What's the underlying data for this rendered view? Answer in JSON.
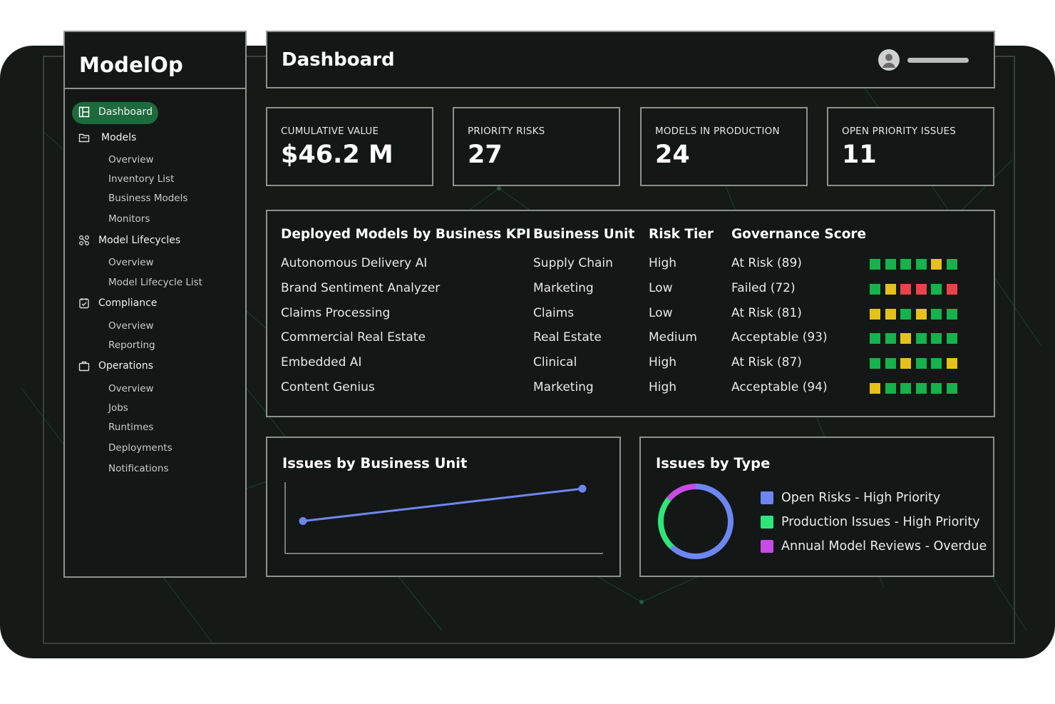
{
  "app": {
    "logo": "ModelOp"
  },
  "header": {
    "title": "Dashboard"
  },
  "sidebar": {
    "items": [
      {
        "label": "Dashboard",
        "icon": "dashboard-icon",
        "active": true
      },
      {
        "label": "Models",
        "icon": "folder-icon"
      },
      {
        "label": "Overview"
      },
      {
        "label": "Inventory List"
      },
      {
        "label": "Business Models"
      },
      {
        "label": "Monitors"
      },
      {
        "label": "Model Lifecycles",
        "icon": "lifecycle-icon"
      },
      {
        "label": "Overview"
      },
      {
        "label": "Model Lifecycle List"
      },
      {
        "label": "Compliance",
        "icon": "checklist-icon"
      },
      {
        "label": "Overview"
      },
      {
        "label": "Reporting"
      },
      {
        "label": "Operations",
        "icon": "briefcase-icon"
      },
      {
        "label": "Overview"
      },
      {
        "label": "Jobs"
      },
      {
        "label": "Runtimes"
      },
      {
        "label": "Deployments"
      },
      {
        "label": "Notifications"
      }
    ]
  },
  "stats": [
    {
      "label": "CUMULATIVE VALUE",
      "value": "$46.2 M"
    },
    {
      "label": "PRIORITY RISKS",
      "value": "27"
    },
    {
      "label": "MODELS IN PRODUCTION",
      "value": "24"
    },
    {
      "label": "OPEN PRIORITY ISSUES",
      "value": "11"
    }
  ],
  "table": {
    "headers": [
      "Deployed Models by Business KPI",
      "Business Unit",
      "Risk Tier",
      "Governance Score"
    ],
    "rows": [
      {
        "model": "Autonomous Delivery AI",
        "unit": "Supply Chain",
        "tier": "High",
        "score": "At Risk (89)",
        "squares": [
          "green",
          "green",
          "green",
          "green",
          "yellow",
          "green"
        ]
      },
      {
        "model": "Brand Sentiment Analyzer",
        "unit": "Marketing",
        "tier": "Low",
        "score": "Failed (72)",
        "squares": [
          "green",
          "yellow",
          "red",
          "red",
          "green",
          "red"
        ]
      },
      {
        "model": "Claims Processing",
        "unit": "Claims",
        "tier": "Low",
        "score": "At Risk (81)",
        "squares": [
          "yellow",
          "yellow",
          "green",
          "yellow",
          "green",
          "green"
        ]
      },
      {
        "model": "Commercial Real Estate",
        "unit": "Real Estate",
        "tier": "Medium",
        "score": "Acceptable (93)",
        "squares": [
          "green",
          "green",
          "yellow",
          "green",
          "green",
          "green"
        ]
      },
      {
        "model": "Embedded AI",
        "unit": "Clinical",
        "tier": "High",
        "score": "At Risk (87)",
        "squares": [
          "green",
          "green",
          "yellow",
          "green",
          "green",
          "yellow"
        ]
      },
      {
        "model": "Content Genius",
        "unit": "Marketing",
        "tier": "High",
        "score": "Acceptable (94)",
        "squares": [
          "yellow",
          "green",
          "green",
          "green",
          "green",
          "green"
        ]
      }
    ]
  },
  "issues_by_unit": {
    "title": "Issues by Business Unit"
  },
  "issues_by_type": {
    "title": "Issues by Type",
    "legend": [
      {
        "label": "Open Risks - High Priority",
        "color": "#6e86f2"
      },
      {
        "label": "Production Issues - High Priority",
        "color": "#2ee57a"
      },
      {
        "label": "Annual Model Reviews - Overdue",
        "color": "#c84be6"
      }
    ]
  },
  "colors": {
    "accent": "#1d6a3d",
    "green": "#16b24b",
    "yellow": "#e5c21a",
    "red": "#e8434a",
    "line": "#6e86f2"
  },
  "chart_data": [
    {
      "type": "line",
      "x": [
        0,
        1
      ],
      "series": [
        {
          "values": [
            1,
            2
          ]
        }
      ],
      "xlabel": "",
      "ylabel": "",
      "ylim": [
        0,
        2.2
      ]
    },
    {
      "type": "pie",
      "categories": [
        "Open Risks - High Priority",
        "Production Issues - High Priority",
        "Annual Model Reviews - Overdue"
      ],
      "values": [
        62,
        24,
        14
      ]
    }
  ]
}
